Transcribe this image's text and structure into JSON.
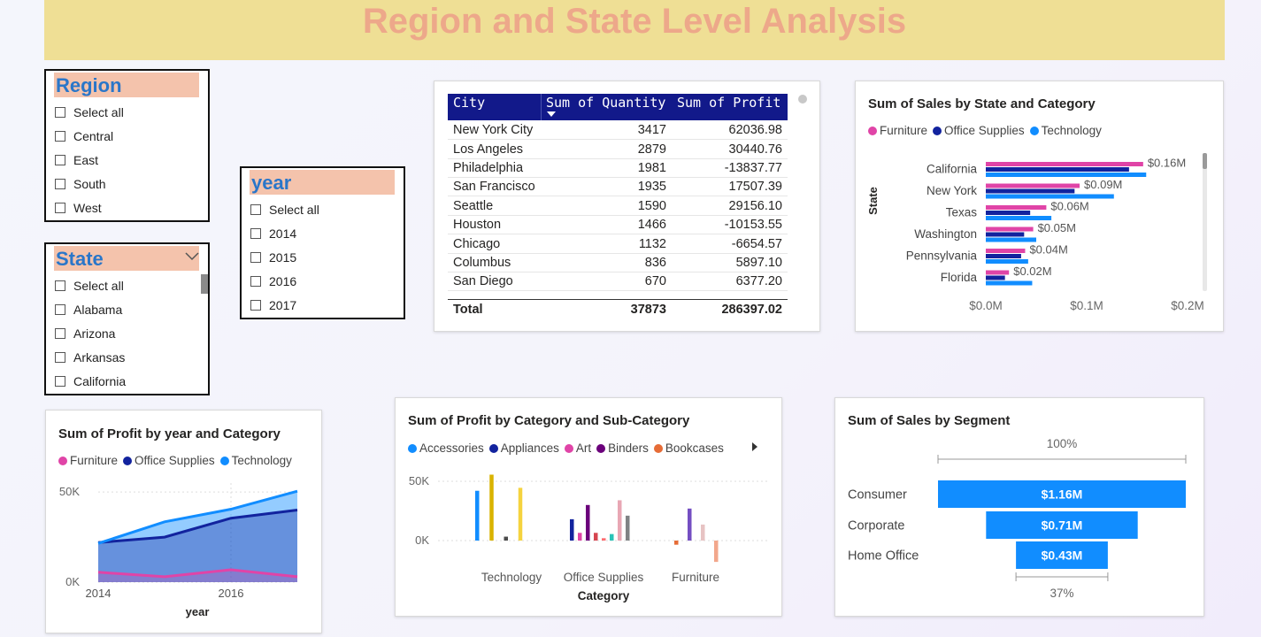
{
  "header": {
    "title": "Region and State Level Analysis"
  },
  "region_slicer": {
    "title": "Region",
    "items": [
      "Select all",
      "Central",
      "East",
      "South",
      "West"
    ]
  },
  "state_slicer": {
    "title": "State",
    "items": [
      "Select all",
      "Alabama",
      "Arizona",
      "Arkansas",
      "California"
    ]
  },
  "year_slicer": {
    "title": "year",
    "items": [
      "Select all",
      "2014",
      "2015",
      "2016",
      "2017"
    ]
  },
  "city_table": {
    "columns": [
      "City",
      "Sum of Quantity",
      "Sum of Profit"
    ],
    "rows": [
      [
        "New York City",
        "3417",
        "62036.98"
      ],
      [
        "Los Angeles",
        "2879",
        "30440.76"
      ],
      [
        "Philadelphia",
        "1981",
        "-13837.77"
      ],
      [
        "San Francisco",
        "1935",
        "17507.39"
      ],
      [
        "Seattle",
        "1590",
        "29156.10"
      ],
      [
        "Houston",
        "1466",
        "-10153.55"
      ],
      [
        "Chicago",
        "1132",
        "-6654.57"
      ],
      [
        "Columbus",
        "836",
        "5897.10"
      ],
      [
        "San Diego",
        "670",
        "6377.20"
      ]
    ],
    "total": [
      "Total",
      "37873",
      "286397.02"
    ]
  },
  "colors": {
    "furniture": "#e044a7",
    "office_supplies": "#12239e",
    "technology": "#118dff",
    "accessories": "#118dff",
    "appliances": "#12239e",
    "art": "#e044a7",
    "binders": "#6b007b",
    "bookcases": "#e66c37"
  },
  "chart_data": [
    {
      "id": "sales_by_state",
      "type": "bar",
      "orientation": "horizontal",
      "title": "Sum of Sales by State and Category",
      "ylabel": "State",
      "legend": [
        "Furniture",
        "Office Supplies",
        "Technology"
      ],
      "categories": [
        "California",
        "New York",
        "Texas",
        "Washington",
        "Pennsylvania",
        "Florida"
      ],
      "series": [
        {
          "name": "Furniture",
          "values": [
            0.156,
            0.093,
            0.06,
            0.047,
            0.039,
            0.023
          ]
        },
        {
          "name": "Office Supplies",
          "values": [
            0.142,
            0.088,
            0.044,
            0.038,
            0.035,
            0.019
          ]
        },
        {
          "name": "Technology",
          "values": [
            0.159,
            0.127,
            0.065,
            0.05,
            0.042,
            0.046
          ]
        }
      ],
      "data_labels": [
        "$0.16M",
        "$0.09M",
        "$0.06M",
        "$0.05M",
        "$0.04M",
        "$0.02M"
      ],
      "xticks": [
        "$0.0M",
        "$0.1M",
        "$0.2M"
      ],
      "xlim": [
        0,
        0.2
      ]
    },
    {
      "id": "profit_by_year",
      "type": "area",
      "title": "Sum of Profit by year and Category",
      "xlabel": "year",
      "legend": [
        "Furniture",
        "Office Supplies",
        "Technology"
      ],
      "x": [
        2014,
        2015,
        2016,
        2017
      ],
      "series": [
        {
          "name": "Furniture",
          "values": [
            5500,
            3000,
            6900,
            3000
          ]
        },
        {
          "name": "Office Supplies",
          "values": [
            22000,
            25000,
            35500,
            40000
          ]
        },
        {
          "name": "Technology",
          "values": [
            21500,
            33500,
            40500,
            50500
          ]
        }
      ],
      "yticks": [
        "0K",
        "50K"
      ],
      "xticks": [
        "2014",
        "2016"
      ],
      "ylim": [
        0,
        55000
      ]
    },
    {
      "id": "profit_by_subcategory",
      "type": "bar",
      "title": "Sum of Profit by Category and Sub-Category",
      "xlabel": "Category",
      "legend": [
        "Accessories",
        "Appliances",
        "Art",
        "Binders",
        "Bookcases"
      ],
      "categories": [
        "Technology",
        "Office Supplies",
        "Furniture"
      ],
      "bars": [
        {
          "category": "Technology",
          "color": "#118dff",
          "value": 42000
        },
        {
          "category": "Technology",
          "color": "#d9b300",
          "value": 55600
        },
        {
          "category": "Technology",
          "color": "#4b4b4b",
          "value": 3300
        },
        {
          "category": "Technology",
          "color": "#f5d33f",
          "value": 44500
        },
        {
          "category": "Office Supplies",
          "color": "#12239e",
          "value": 18000
        },
        {
          "category": "Office Supplies",
          "color": "#e044a7",
          "value": 6500
        },
        {
          "category": "Office Supplies",
          "color": "#6b007b",
          "value": 30000
        },
        {
          "category": "Office Supplies",
          "color": "#d64550",
          "value": 6500
        },
        {
          "category": "Office Supplies",
          "color": "#fd6b6f",
          "value": 2000
        },
        {
          "category": "Office Supplies",
          "color": "#2ac3b7",
          "value": 5500
        },
        {
          "category": "Office Supplies",
          "color": "#e8a7b4",
          "value": 34000
        },
        {
          "category": "Office Supplies",
          "color": "#7f8284",
          "value": 21000
        },
        {
          "category": "Furniture",
          "color": "#e66c37",
          "value": -3500
        },
        {
          "category": "Furniture",
          "color": "#744ec2",
          "value": 27000
        },
        {
          "category": "Furniture",
          "color": "#e7c3c3",
          "value": 13500
        },
        {
          "category": "Furniture",
          "color": "#f2a78b",
          "value": -18000
        }
      ],
      "yticks": [
        "0K",
        "50K"
      ],
      "ylim": [
        -25000,
        60000
      ]
    },
    {
      "id": "sales_by_segment",
      "type": "funnel",
      "title": "Sum of Sales by Segment",
      "categories": [
        "Consumer",
        "Corporate",
        "Home Office"
      ],
      "values": [
        1.16,
        0.71,
        0.43
      ],
      "labels": [
        "$1.16M",
        "$0.71M",
        "$0.43M"
      ],
      "top_percent": "100%",
      "bottom_percent": "37%"
    }
  ]
}
